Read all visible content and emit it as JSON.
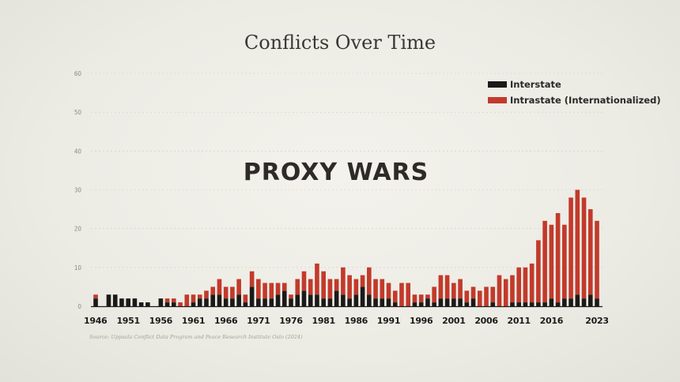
{
  "chart_data": {
    "type": "bar",
    "stacked": true,
    "title": "Conflicts Over Time",
    "annotation": "PROXY WARS",
    "source": "Source: Uppsala Conflict Data Program and Peace Research Institute Oslo (2024)",
    "ylim": [
      0,
      60
    ],
    "yticks": [
      0,
      10,
      20,
      30,
      40,
      50,
      60
    ],
    "xticks": [
      1946,
      1951,
      1956,
      1961,
      1966,
      1971,
      1976,
      1981,
      1986,
      1991,
      1996,
      2001,
      2006,
      2011,
      2016,
      2023
    ],
    "grid": true,
    "legend_position": "top-right",
    "colors": {
      "interstate": "#1c1a19",
      "intrastate": "#c23a2b"
    },
    "years": [
      1946,
      1947,
      1948,
      1949,
      1950,
      1951,
      1952,
      1953,
      1954,
      1955,
      1956,
      1957,
      1958,
      1959,
      1960,
      1961,
      1962,
      1963,
      1964,
      1965,
      1966,
      1967,
      1968,
      1969,
      1970,
      1971,
      1972,
      1973,
      1974,
      1975,
      1976,
      1977,
      1978,
      1979,
      1980,
      1981,
      1982,
      1983,
      1984,
      1985,
      1986,
      1987,
      1988,
      1989,
      1990,
      1991,
      1992,
      1993,
      1994,
      1995,
      1996,
      1997,
      1998,
      1999,
      2000,
      2001,
      2002,
      2003,
      2004,
      2005,
      2006,
      2007,
      2008,
      2009,
      2010,
      2011,
      2012,
      2013,
      2014,
      2015,
      2016,
      2017,
      2018,
      2019,
      2020,
      2021,
      2022,
      2023
    ],
    "series": [
      {
        "name": "Interstate",
        "values": [
          2,
          0,
          3,
          3,
          2,
          2,
          2,
          1,
          1,
          0,
          2,
          1,
          1,
          0,
          0,
          1,
          2,
          2,
          3,
          3,
          2,
          2,
          3,
          1,
          5,
          2,
          2,
          2,
          3,
          4,
          2,
          3,
          4,
          3,
          3,
          2,
          2,
          4,
          3,
          2,
          3,
          5,
          3,
          2,
          2,
          2,
          1,
          0,
          0,
          1,
          1,
          2,
          1,
          2,
          2,
          2,
          2,
          1,
          2,
          0,
          0,
          1,
          0,
          0,
          1,
          1,
          1,
          1,
          1,
          1,
          2,
          1,
          2,
          2,
          3,
          2,
          3,
          2
        ]
      },
      {
        "name": "Intrastate (Internationalized)",
        "values": [
          1,
          0,
          0,
          0,
          0,
          0,
          0,
          0,
          0,
          0,
          0,
          1,
          1,
          1,
          3,
          2,
          1,
          2,
          2,
          4,
          3,
          3,
          4,
          2,
          4,
          5,
          4,
          4,
          3,
          2,
          1,
          4,
          5,
          4,
          8,
          7,
          5,
          3,
          7,
          6,
          4,
          3,
          7,
          5,
          5,
          4,
          3,
          6,
          6,
          2,
          2,
          1,
          4,
          6,
          6,
          4,
          5,
          3,
          3,
          4,
          5,
          4,
          8,
          7,
          7,
          9,
          9,
          10,
          16,
          21,
          19,
          23,
          19,
          26,
          27,
          26,
          22,
          20
        ]
      }
    ]
  }
}
